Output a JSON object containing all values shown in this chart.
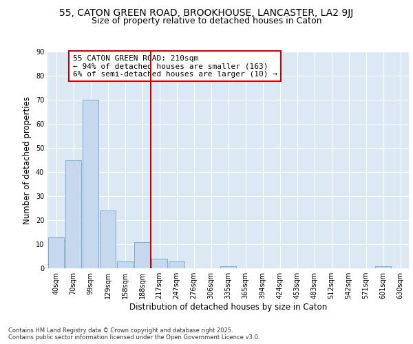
{
  "title_line1": "55, CATON GREEN ROAD, BROOKHOUSE, LANCASTER, LA2 9JJ",
  "title_line2": "Size of property relative to detached houses in Caton",
  "xlabel": "Distribution of detached houses by size in Caton",
  "ylabel": "Number of detached properties",
  "bar_labels": [
    "40sqm",
    "70sqm",
    "99sqm",
    "129sqm",
    "158sqm",
    "188sqm",
    "217sqm",
    "247sqm",
    "276sqm",
    "306sqm",
    "335sqm",
    "365sqm",
    "394sqm",
    "424sqm",
    "453sqm",
    "483sqm",
    "512sqm",
    "542sqm",
    "571sqm",
    "601sqm",
    "630sqm"
  ],
  "bar_values": [
    13,
    45,
    70,
    24,
    3,
    11,
    4,
    3,
    0,
    0,
    1,
    0,
    0,
    0,
    0,
    0,
    0,
    0,
    0,
    1,
    0
  ],
  "bar_color": "#c5d8ee",
  "bar_edge_color": "#7aaccc",
  "vline_x": 6,
  "vline_color": "#cc0000",
  "annotation_title": "55 CATON GREEN ROAD: 210sqm",
  "annotation_line2": "← 94% of detached houses are smaller (163)",
  "annotation_line3": "6% of semi-detached houses are larger (10) →",
  "annotation_box_color": "#cc0000",
  "ylim": [
    0,
    90
  ],
  "yticks": [
    0,
    10,
    20,
    30,
    40,
    50,
    60,
    70,
    80,
    90
  ],
  "bg_color": "#ffffff",
  "plot_bg_color": "#dce9f5",
  "footer_line1": "Contains HM Land Registry data © Crown copyright and database right 2025.",
  "footer_line2": "Contains public sector information licensed under the Open Government Licence v3.0.",
  "grid_color": "#ffffff",
  "title_fontsize": 10,
  "subtitle_fontsize": 9,
  "axis_label_fontsize": 8.5,
  "tick_fontsize": 7,
  "annotation_fontsize": 8
}
